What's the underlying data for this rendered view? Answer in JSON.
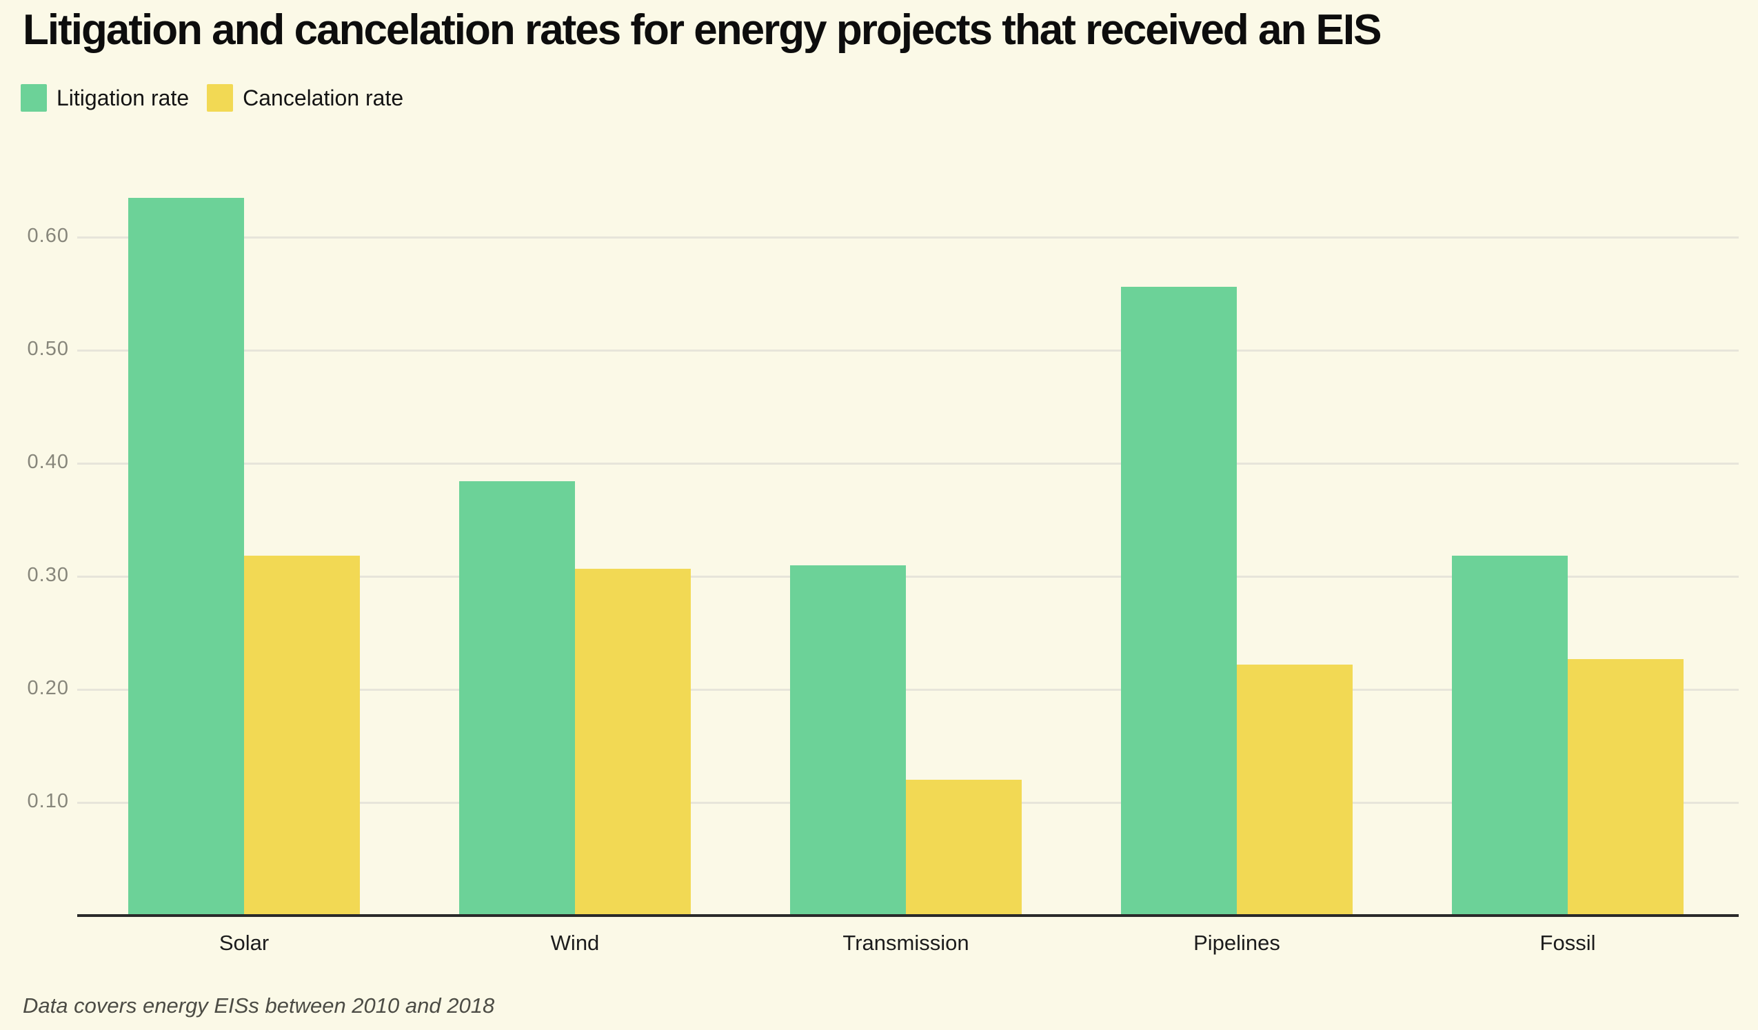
{
  "header": {
    "title": "Litigation and cancelation rates for energy projects that received an EIS"
  },
  "legend": {
    "items": [
      {
        "label": "Litigation rate",
        "color": "#6cd298"
      },
      {
        "label": "Cancelation rate",
        "color": "#f2d954"
      }
    ]
  },
  "footnote": "Data covers energy EISs between 2010 and 2018",
  "colors": {
    "background": "#fbf9e7",
    "gridline": "#e7e5da",
    "axis_line": "#2a2a2a",
    "tick_label_color": "#87867b",
    "category_label_color": "#1c1c1c"
  },
  "chart_data": {
    "type": "bar",
    "title": "Litigation and cancelation rates for energy projects that received an EIS",
    "categories": [
      "Solar",
      "Wind",
      "Transmission",
      "Pipelines",
      "Fossil"
    ],
    "series": [
      {
        "name": "Litigation rate",
        "color": "#6cd298",
        "values": [
          0.635,
          0.384,
          0.31,
          0.556,
          0.318
        ]
      },
      {
        "name": "Cancelation rate",
        "color": "#f2d954",
        "values": [
          0.318,
          0.307,
          0.12,
          0.222,
          0.227
        ]
      }
    ],
    "xlabel": "",
    "ylabel": "",
    "ylim": [
      0,
      0.66
    ],
    "yticks": [
      {
        "value": 0.1,
        "label": "0.10"
      },
      {
        "value": 0.2,
        "label": "0.20"
      },
      {
        "value": 0.3,
        "label": "0.30"
      },
      {
        "value": 0.4,
        "label": "0.40"
      },
      {
        "value": 0.5,
        "label": "0.50"
      },
      {
        "value": 0.6,
        "label": "0.60"
      }
    ],
    "grid": "horizontal-only",
    "legend_position": "top-left",
    "footnote": "Data covers energy EISs between 2010 and 2018"
  }
}
